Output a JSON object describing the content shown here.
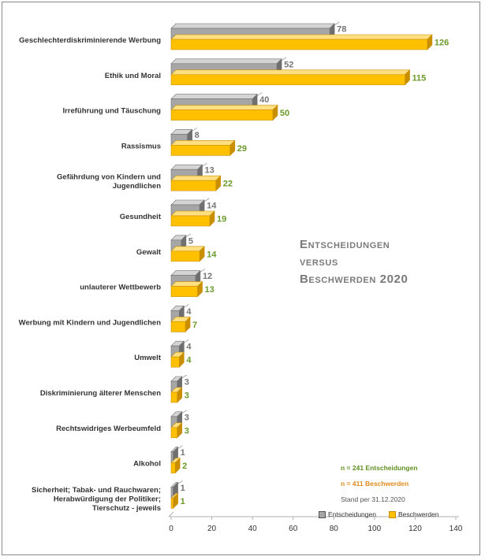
{
  "chart_data": {
    "type": "bar",
    "orientation": "horizontal",
    "title_lines": [
      "Entscheidungen",
      "versus",
      "Beschwerden 2020"
    ],
    "categories": [
      "Geschlechterdiskriminierende Werbung",
      "Ethik und Moral",
      "Irreführung und Täuschung",
      "Rassismus",
      "Gefährdung von Kindern und Jugendlichen",
      "Gesundheit",
      "Gewalt",
      "unlauterer Wettbewerb",
      "Werbung mit Kindern und Jugendlichen",
      "Umwelt",
      "Diskriminierung älterer Menschen",
      "Rechtswidriges Werbeumfeld",
      "Alkohol",
      "Sicherheit; Tabak- und Rauchwaren; Herabwürdigung der Politiker; Tierschutz - jeweils"
    ],
    "series": [
      {
        "name": "Entscheidungen",
        "color": "#a6a6a6",
        "values": [
          78,
          52,
          40,
          8,
          13,
          14,
          5,
          12,
          4,
          4,
          3,
          3,
          1,
          1
        ]
      },
      {
        "name": "Beschwerden",
        "color": "#ffc000",
        "values": [
          126,
          115,
          50,
          29,
          22,
          19,
          14,
          13,
          7,
          4,
          3,
          3,
          2,
          1
        ]
      }
    ],
    "xlim": [
      0,
      140
    ],
    "xticks": [
      0,
      20,
      40,
      60,
      80,
      100,
      120,
      140
    ],
    "grid": false,
    "legend_position": "bottom-right"
  },
  "notes": {
    "decisions": "n = 241 Entscheidungen",
    "complaints": "n = 411 Beschwerden",
    "as_of": "Stand per 31.12.2020"
  },
  "legend": {
    "decisions_label": "Entscheidungen",
    "complaints_label": "Beschwerden"
  }
}
